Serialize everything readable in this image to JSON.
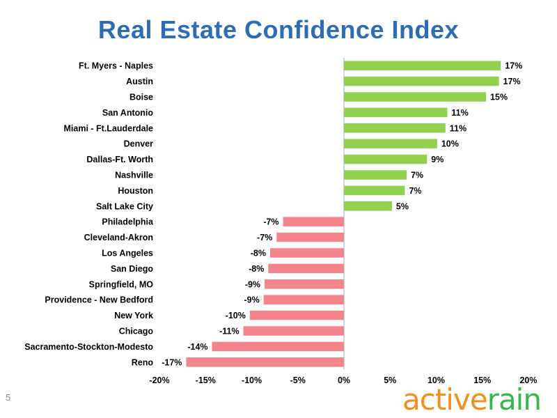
{
  "slide": {
    "title": "Real Estate Confidence Index",
    "page_number": "5",
    "logo": {
      "word1": "active",
      "word2": "rain"
    }
  },
  "colors": {
    "title": "#2e6db4",
    "positive_bar": "#92d050",
    "negative_bar": "#f4838a",
    "axis": "#aeaeae",
    "text": "#000000"
  },
  "chart_data": {
    "type": "bar",
    "orientation": "horizontal",
    "title": "Real Estate Confidence Index",
    "xlabel": "",
    "ylabel": "",
    "xlim": [
      -20,
      20
    ],
    "x_ticks": [
      "-20%",
      "-15%",
      "-10%",
      "-5%",
      "0%",
      "5%",
      "10%",
      "15%",
      "20%"
    ],
    "x_tick_values": [
      -20,
      -15,
      -10,
      -5,
      0,
      5,
      10,
      15,
      20
    ],
    "grid": false,
    "legend": "none",
    "categories": [
      "Ft. Myers - Naples",
      "Austin",
      "Boise",
      "San Antonio",
      "Miami - Ft.Lauderdale",
      "Denver",
      "Dallas-Ft. Worth",
      "Nashville",
      "Houston",
      "Salt Lake City",
      "Philadelphia",
      "Cleveland-Akron",
      "Los Angeles",
      "San Diego",
      "Springfield, MO",
      "Providence - New Bedford",
      "New York",
      "Chicago",
      "Sacramento-Stockton-Modesto",
      "Reno"
    ],
    "values": [
      17,
      17,
      15,
      11,
      11,
      10,
      9,
      7,
      7,
      5,
      -7,
      -7,
      -8,
      -8,
      -9,
      -9,
      -10,
      -11,
      -14,
      -17
    ],
    "bar_lengths": [
      17,
      16.8,
      15.4,
      11.2,
      11,
      10.1,
      9,
      6.8,
      6.6,
      5.2,
      -6.6,
      -7.3,
      -8,
      -8.2,
      -8.6,
      -8.7,
      -10.2,
      -10.9,
      -14.3,
      -17.1
    ],
    "labels": [
      "17%",
      "17%",
      "15%",
      "11%",
      "11%",
      "10%",
      "9%",
      "7%",
      "7%",
      "5%",
      "-7%",
      "-7%",
      "-8%",
      "-8%",
      "-9%",
      "-9%",
      "-10%",
      "-11%",
      "-14%",
      "-17%"
    ]
  }
}
